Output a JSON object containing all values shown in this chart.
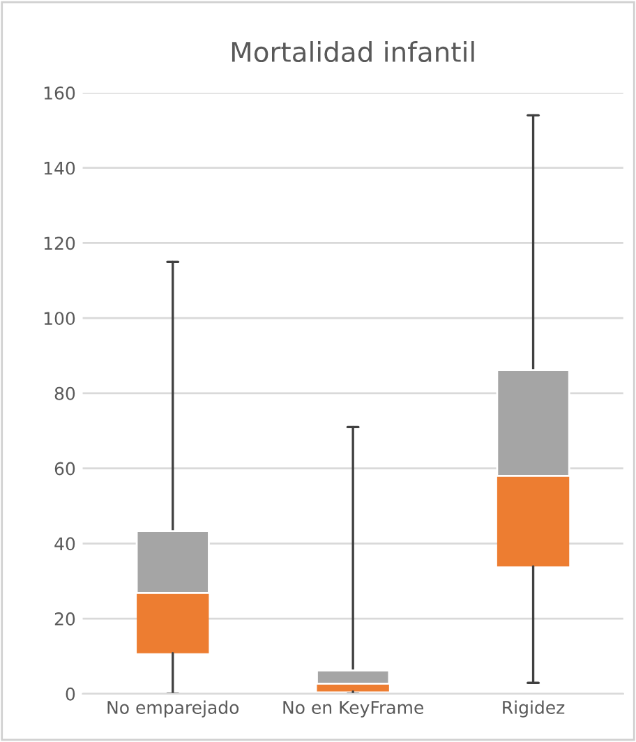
{
  "chart_data": {
    "type": "box",
    "title": "Mortalidad infantil",
    "categories": [
      "No emparejado",
      "No en KeyFrame",
      "Rigidez"
    ],
    "series": [
      {
        "color": "#ed7d31",
        "boxes": [
          {
            "low": 0,
            "q1": 10.8,
            "median": 26.8,
            "q3": 43.3,
            "high": 115
          },
          {
            "low": 0,
            "q1": 0.6,
            "median": 2.7,
            "q3": 6.2,
            "high": 71
          },
          {
            "low": 2.9,
            "q1": 33.9,
            "median": 58,
            "q3": 86.2,
            "high": 154
          }
        ]
      }
    ],
    "colors": [
      "#a5a5a5",
      "#a5a5a5",
      "#a5a5a5"
    ],
    "ylim": [
      0,
      160
    ],
    "yticks": [
      0,
      20,
      40,
      60,
      80,
      100,
      120,
      140,
      160
    ],
    "grid": "y"
  }
}
